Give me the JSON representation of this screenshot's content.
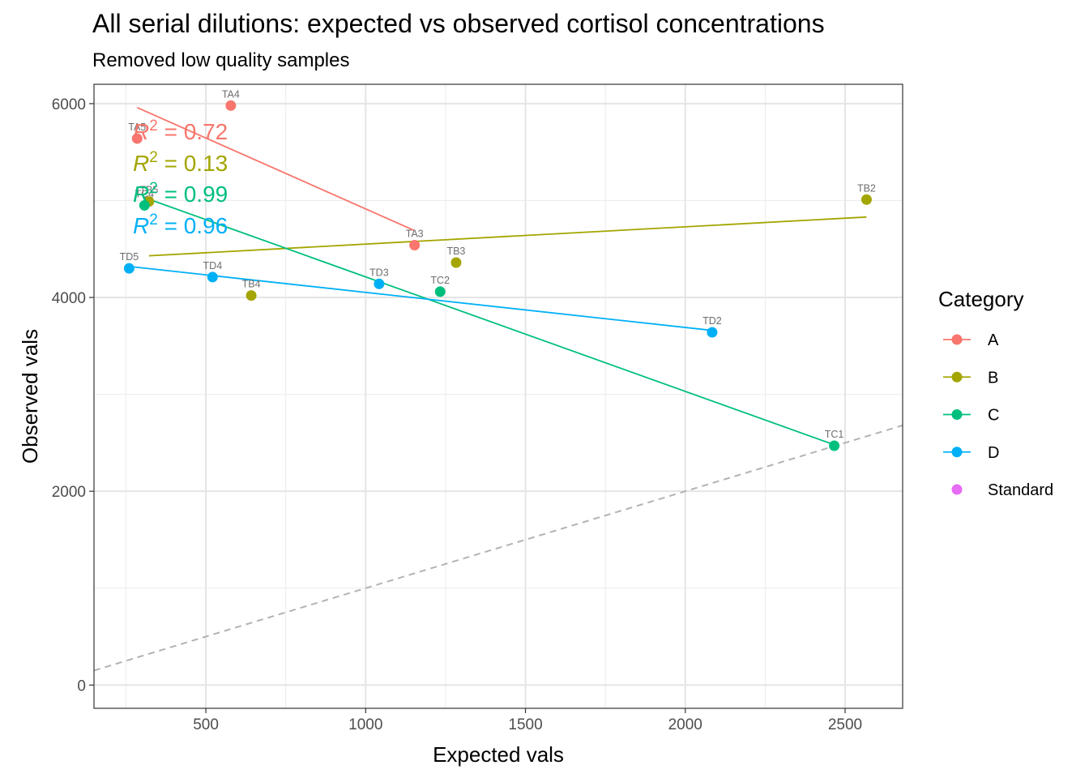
{
  "chart_data": {
    "type": "scatter",
    "title": "All serial dilutions: expected vs observed cortisol concentrations",
    "subtitle": "Removed low quality samples",
    "xlabel": "Expected vals",
    "ylabel": "Observed vals",
    "xlim": [
      150,
      2680
    ],
    "ylim": [
      -240,
      6200
    ],
    "x_ticks": [
      500,
      1000,
      1500,
      2000,
      2500
    ],
    "y_ticks": [
      0,
      2000,
      4000,
      6000
    ],
    "x_tick_labels": [
      "500",
      "1000",
      "1500",
      "2000",
      "2500"
    ],
    "y_tick_labels": [
      "0",
      "2000",
      "4000",
      "6000"
    ],
    "x_minor_ticks": [
      250,
      750,
      1250,
      1750,
      2250
    ],
    "y_minor_ticks": [
      1000,
      3000,
      5000
    ],
    "grid": true,
    "reference_line": {
      "style": "dashed",
      "slope": 1,
      "intercept": 0,
      "color": "#b3b3b3"
    },
    "legend": {
      "title": "Category",
      "placement": "right",
      "entries": [
        {
          "label": "A",
          "color": "#F8766D",
          "has_line": true
        },
        {
          "label": "B",
          "color": "#A3A500",
          "has_line": true
        },
        {
          "label": "C",
          "color": "#00BF7D",
          "has_line": true
        },
        {
          "label": "D",
          "color": "#00B0F6",
          "has_line": true
        },
        {
          "label": "Standard",
          "color": "#E76BF3",
          "has_line": false
        }
      ]
    },
    "series": [
      {
        "name": "A",
        "color": "#F8766D",
        "points": [
          {
            "label": "TA5",
            "x": 285,
            "y": 5640
          },
          {
            "label": "TA4",
            "x": 578,
            "y": 5980
          },
          {
            "label": "TA3",
            "x": 1153,
            "y": 4540
          }
        ],
        "fit": {
          "x1": 285,
          "y1": 5960,
          "x2": 1153,
          "y2": 4690
        },
        "r2": {
          "prefix": "R",
          "exponent": "2",
          "text": " = 0.72"
        }
      },
      {
        "name": "B",
        "color": "#A3A500",
        "points": [
          {
            "label": "TB5",
            "x": 322,
            "y": 4990
          },
          {
            "label": "TB4",
            "x": 642,
            "y": 4020
          },
          {
            "label": "TB3",
            "x": 1283,
            "y": 4360
          },
          {
            "label": "TB2",
            "x": 2567,
            "y": 5010
          }
        ],
        "fit": {
          "x1": 322,
          "y1": 4430,
          "x2": 2567,
          "y2": 4830
        },
        "r2": {
          "prefix": "R",
          "exponent": "2",
          "text": " = 0.13"
        }
      },
      {
        "name": "C",
        "color": "#00BF7D",
        "points": [
          {
            "label": "TC4",
            "x": 308,
            "y": 4950
          },
          {
            "label": "TC2",
            "x": 1233,
            "y": 4060
          },
          {
            "label": "TC1",
            "x": 2466,
            "y": 2470
          }
        ],
        "fit": {
          "x1": 308,
          "y1": 5030,
          "x2": 2466,
          "y2": 2480
        },
        "r2": {
          "prefix": "R",
          "exponent": "2",
          "text": " = 0.99"
        }
      },
      {
        "name": "D",
        "color": "#00B0F6",
        "points": [
          {
            "label": "TD5",
            "x": 260,
            "y": 4300
          },
          {
            "label": "TD4",
            "x": 521,
            "y": 4210
          },
          {
            "label": "TD3",
            "x": 1042,
            "y": 4140
          },
          {
            "label": "TD2",
            "x": 2084,
            "y": 3640
          }
        ],
        "fit": {
          "x1": 260,
          "y1": 4320,
          "x2": 2084,
          "y2": 3660
        },
        "r2": {
          "prefix": "R",
          "exponent": "2",
          "text": " = 0.96"
        }
      }
    ]
  }
}
